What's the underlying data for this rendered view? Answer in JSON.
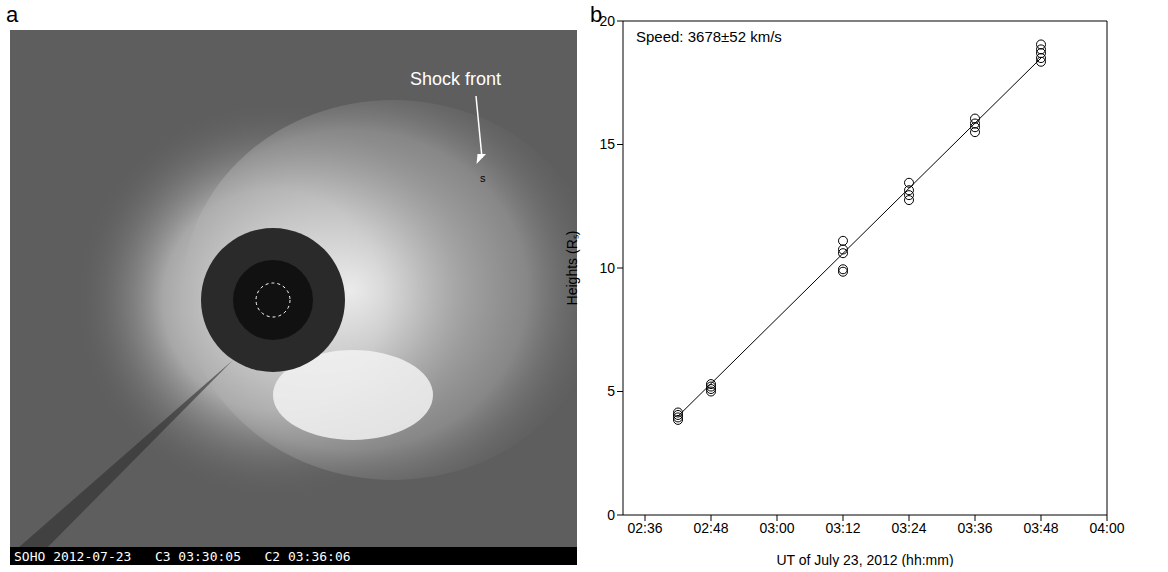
{
  "panel_a": {
    "letter": "a",
    "annotation": "Shock front",
    "marker_label": "s",
    "caption": "SOHO 2012-07-23   C3 03:30:05   C2 03:36:06"
  },
  "chart_data": {
    "type": "scatter",
    "letter": "b",
    "annotation": "Speed: 3678±52 km/s",
    "x_label": "UT of July 23, 2012 (hh:mm)",
    "y_label": "Heights (Rₛ)",
    "xlim": [
      152,
      240
    ],
    "xticks": [
      {
        "value": 156,
        "label": "02:36"
      },
      {
        "value": 168,
        "label": "02:48"
      },
      {
        "value": 180,
        "label": "03:00"
      },
      {
        "value": 192,
        "label": "03:12"
      },
      {
        "value": 204,
        "label": "03:24"
      },
      {
        "value": 216,
        "label": "03:36"
      },
      {
        "value": 228,
        "label": "03:48"
      },
      {
        "value": 240,
        "label": "04:00"
      }
    ],
    "ylim": [
      0,
      20
    ],
    "yticks": [
      0,
      5,
      10,
      15,
      20
    ],
    "grid": false,
    "series": [
      {
        "type": "scatter",
        "marker": "o",
        "color": "#000000",
        "x": [
          162,
          162,
          162,
          162,
          168,
          168,
          168,
          168,
          192,
          192,
          192,
          192,
          192,
          204,
          204,
          204,
          204,
          216,
          216,
          216,
          216,
          228,
          228,
          228,
          228,
          228
        ],
        "values": [
          3.85,
          3.95,
          4.05,
          4.15,
          5.0,
          5.1,
          5.2,
          5.3,
          9.85,
          9.95,
          10.6,
          10.75,
          11.1,
          12.75,
          12.95,
          13.15,
          13.45,
          15.5,
          15.7,
          15.85,
          16.05,
          18.35,
          18.5,
          18.7,
          18.85,
          19.05
        ]
      },
      {
        "type": "line",
        "line_style": "solid",
        "color": "#000000",
        "x": [
          162,
          228
        ],
        "values": [
          4.0,
          18.5
        ]
      }
    ]
  }
}
